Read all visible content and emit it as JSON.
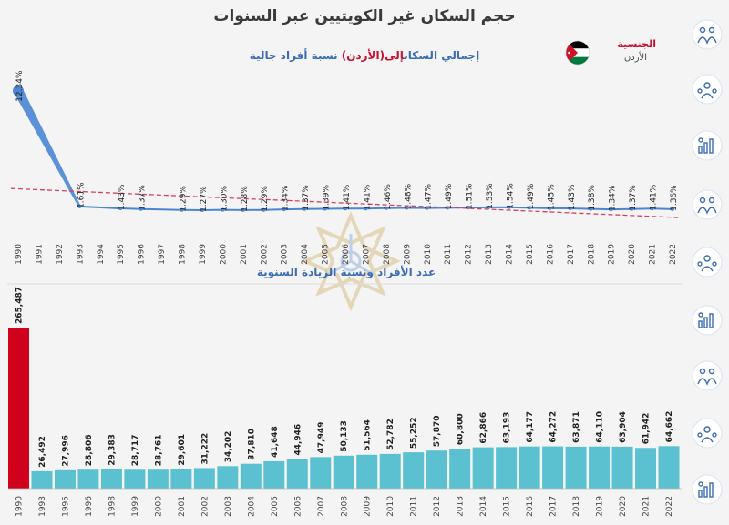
{
  "header": {
    "title": "حجم السكان غير الكويتيين عبر السنوات",
    "subtitle_prefix": "إجمالي السكان",
    "subtitle_country": "إلى(الأردن)",
    "subtitle_suffix": " نسبة أفراد جالية",
    "bar_section_title": "عدد الأفراد ونسبة الزيادة السنوية"
  },
  "filter": {
    "label": "الجنسية",
    "value": "الأردن"
  },
  "colors": {
    "line": "#4a86d4",
    "trend": "#d64060",
    "bar": "#5bc0cf",
    "bar_highlight": "#d0021b",
    "title": "#3a3a3a",
    "accent": "#c8102e",
    "icon": "#3b6cb5"
  },
  "sidebar": {
    "icons": [
      "family-icon",
      "people-network-icon",
      "group-growth-icon",
      "population-bars-icon",
      "people-circle-icon",
      "family-group-icon",
      "crowd-icon",
      "home-family-icon",
      "home-check-icon"
    ]
  },
  "chart_data": [
    {
      "type": "line",
      "years": [
        "1990",
        "1991",
        "1992",
        "1993",
        "1994",
        "1995",
        "1996",
        "1997",
        "1998",
        "1999",
        "2000",
        "2001",
        "2002",
        "2003",
        "2004",
        "2005",
        "2006",
        "2007",
        "2008",
        "2009",
        "2010",
        "2011",
        "2012",
        "2013",
        "2014",
        "2015",
        "2016",
        "2017",
        "2018",
        "2019",
        "2020",
        "2021",
        "2022"
      ],
      "points": [
        {
          "year": "1990",
          "value": 12.34,
          "label": "12.34%"
        },
        {
          "year": "1993",
          "value": 1.61,
          "label": "1.61%"
        },
        {
          "year": "1995",
          "value": 1.43,
          "label": "1.43%"
        },
        {
          "year": "1996",
          "value": 1.37,
          "label": "1.37%"
        },
        {
          "year": "1998",
          "value": 1.29,
          "label": "1.29%"
        },
        {
          "year": "1999",
          "value": 1.27,
          "label": "1.27%"
        },
        {
          "year": "2000",
          "value": 1.3,
          "label": "1.30%"
        },
        {
          "year": "2001",
          "value": 1.28,
          "label": "1.28%"
        },
        {
          "year": "2002",
          "value": 1.29,
          "label": "1.29%"
        },
        {
          "year": "2003",
          "value": 1.34,
          "label": "1.34%"
        },
        {
          "year": "2004",
          "value": 1.37,
          "label": "1.37%"
        },
        {
          "year": "2005",
          "value": 1.39,
          "label": "1.39%"
        },
        {
          "year": "2006",
          "value": 1.41,
          "label": "1.41%"
        },
        {
          "year": "2007",
          "value": 1.41,
          "label": "1.41%"
        },
        {
          "year": "2008",
          "value": 1.46,
          "label": "1.46%"
        },
        {
          "year": "2009",
          "value": 1.48,
          "label": "1.48%"
        },
        {
          "year": "2010",
          "value": 1.47,
          "label": "1.47%"
        },
        {
          "year": "2011",
          "value": 1.49,
          "label": "1.49%"
        },
        {
          "year": "2012",
          "value": 1.51,
          "label": "1.51%"
        },
        {
          "year": "2013",
          "value": 1.53,
          "label": "1.53%"
        },
        {
          "year": "2014",
          "value": 1.54,
          "label": "1.54%"
        },
        {
          "year": "2015",
          "value": 1.49,
          "label": "1.49%"
        },
        {
          "year": "2016",
          "value": 1.45,
          "label": "1.45%"
        },
        {
          "year": "2017",
          "value": 1.43,
          "label": "1.43%"
        },
        {
          "year": "2018",
          "value": 1.38,
          "label": "1.38%"
        },
        {
          "year": "2019",
          "value": 1.34,
          "label": "1.34%"
        },
        {
          "year": "2020",
          "value": 1.37,
          "label": "1.37%"
        },
        {
          "year": "2021",
          "value": 1.41,
          "label": "1.41%"
        },
        {
          "year": "2022",
          "value": 1.36,
          "label": "1.36%"
        }
      ],
      "trendline": true,
      "ylim": [
        0,
        13
      ]
    },
    {
      "type": "bar",
      "categories": [
        "1990",
        "1993",
        "1995",
        "1996",
        "1998",
        "1999",
        "2000",
        "2001",
        "2002",
        "2003",
        "2004",
        "2005",
        "2006",
        "2007",
        "2008",
        "2009",
        "2010",
        "2011",
        "2012",
        "2013",
        "2014",
        "2015",
        "2016",
        "2017",
        "2018",
        "2019",
        "2020",
        "2021",
        "2022"
      ],
      "values": [
        265487,
        26492,
        27996,
        28806,
        29383,
        28717,
        28761,
        29601,
        31222,
        34202,
        37810,
        41648,
        44946,
        47949,
        50133,
        51564,
        52782,
        55252,
        57870,
        60800,
        62866,
        63193,
        64177,
        64272,
        63871,
        64110,
        63904,
        61942,
        64662
      ],
      "labels": [
        "265,487",
        "26,492",
        "27,996",
        "28,806",
        "29,383",
        "28,717",
        "28,761",
        "29,601",
        "31,222",
        "34,202",
        "37,810",
        "41,648",
        "44,946",
        "47,949",
        "50,133",
        "51,564",
        "52,782",
        "55,252",
        "57,870",
        "60,800",
        "62,866",
        "63,193",
        "64,177",
        "64,272",
        "63,871",
        "64,110",
        "63,904",
        "61,942",
        "64,662"
      ],
      "highlight_index": 0,
      "ylim": [
        0,
        290000
      ]
    }
  ]
}
